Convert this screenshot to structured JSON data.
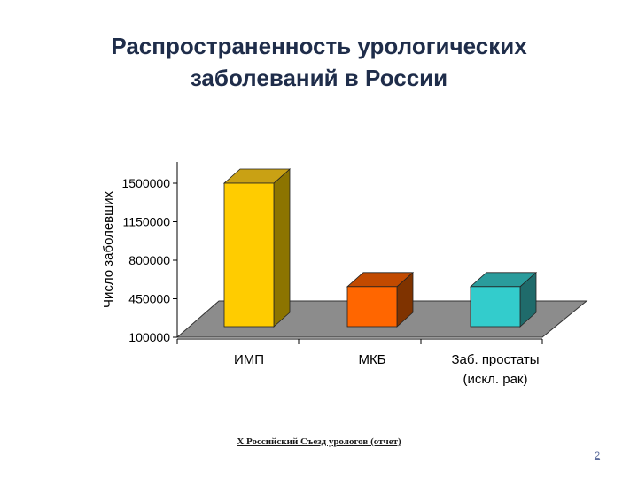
{
  "slide": {
    "title_line1": "Распространенность урологических",
    "title_line2": "заболеваний в России",
    "source": "X Российский Съезд урологов (отчет)",
    "page_number": "2"
  },
  "chart_data": {
    "type": "bar",
    "title": "",
    "xlabel": "",
    "ylabel": "Число заболевших",
    "ylim": [
      100000,
      1500000
    ],
    "yticks": [
      100000,
      450000,
      800000,
      1150000,
      1500000
    ],
    "ytick_labels": [
      "100000",
      "450000",
      "800000",
      "1150000",
      "1500000"
    ],
    "grid": false,
    "categories": [
      {
        "lines": [
          "ИМП"
        ]
      },
      {
        "lines": [
          "МКБ"
        ]
      },
      {
        "lines": [
          "Заб. простаты",
          "(искл. рак)"
        ]
      }
    ],
    "values": [
      1500000,
      560000,
      560000
    ],
    "colors": [
      {
        "front": "#ffcc00",
        "top": "#c9a114",
        "side": "#8c7400"
      },
      {
        "front": "#ff6600",
        "top": "#c24a00",
        "side": "#7f3300"
      },
      {
        "front": "#33cccc",
        "top": "#2a9c9c",
        "side": "#1f6b6b"
      }
    ],
    "floor_color": "#8c8c8c"
  }
}
